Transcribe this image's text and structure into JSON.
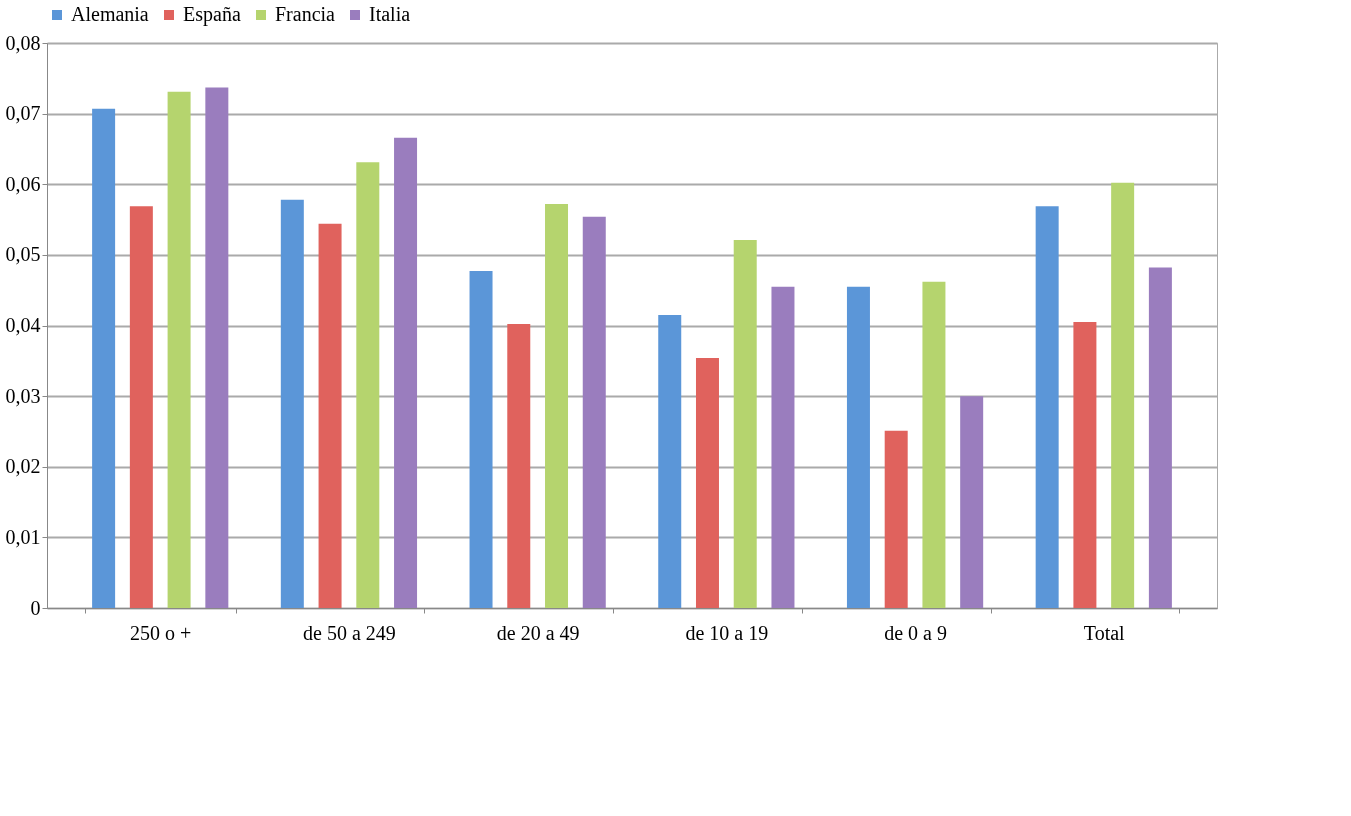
{
  "chart_data": {
    "type": "bar",
    "categories": [
      "250 o +",
      "de 50 a 249",
      "de 20 a 49",
      "de 10 a 19",
      "de 0 a 9",
      "Total"
    ],
    "series": [
      {
        "name": "Alemania",
        "color": "#5b96d8",
        "values": [
          0.0707,
          0.0578,
          0.0477,
          0.0415,
          0.0455,
          0.0569
        ]
      },
      {
        "name": "España",
        "color": "#e0625d",
        "values": [
          0.0569,
          0.0544,
          0.0402,
          0.0354,
          0.0251,
          0.0405
        ]
      },
      {
        "name": "Francia",
        "color": "#b5d46e",
        "values": [
          0.0731,
          0.0631,
          0.0572,
          0.0521,
          0.0462,
          0.0602
        ]
      },
      {
        "name": "Italia",
        "color": "#9a7dbe",
        "values": [
          0.0737,
          0.0666,
          0.0554,
          0.0455,
          0.03,
          0.0482
        ]
      }
    ],
    "ylim": [
      0,
      0.08
    ],
    "yticks": [
      0,
      {
        "value": 0.01,
        "label": "0,01"
      },
      {
        "value": 0.02,
        "label": "0,02"
      },
      {
        "value": 0.03,
        "label": "0,03"
      },
      {
        "value": 0.04,
        "label": "0,04"
      },
      {
        "value": 0.05,
        "label": "0,05"
      },
      {
        "value": 0.06,
        "label": "0,06"
      },
      {
        "value": 0.07,
        "label": "0,07"
      },
      {
        "value": 0.08,
        "label": "0,08"
      }
    ],
    "grid": "y",
    "legend": "top"
  }
}
